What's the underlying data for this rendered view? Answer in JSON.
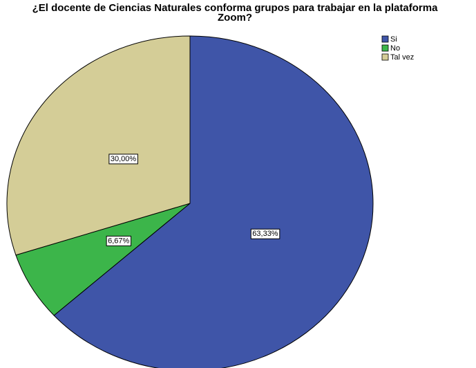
{
  "chart_data": {
    "type": "pie",
    "title": "¿El docente de Ciencias Naturales conforma grupos para trabajar en la plataforma Zoom?",
    "categories": [
      "Si",
      "No",
      "Tal vez"
    ],
    "values": [
      63.33,
      6.67,
      30
    ],
    "value_labels": [
      "63,33%",
      "6,67%",
      "30,00%"
    ],
    "colors": [
      "#3f55a8",
      "#3cb54a",
      "#d4cd97"
    ],
    "legend": "top-right"
  }
}
